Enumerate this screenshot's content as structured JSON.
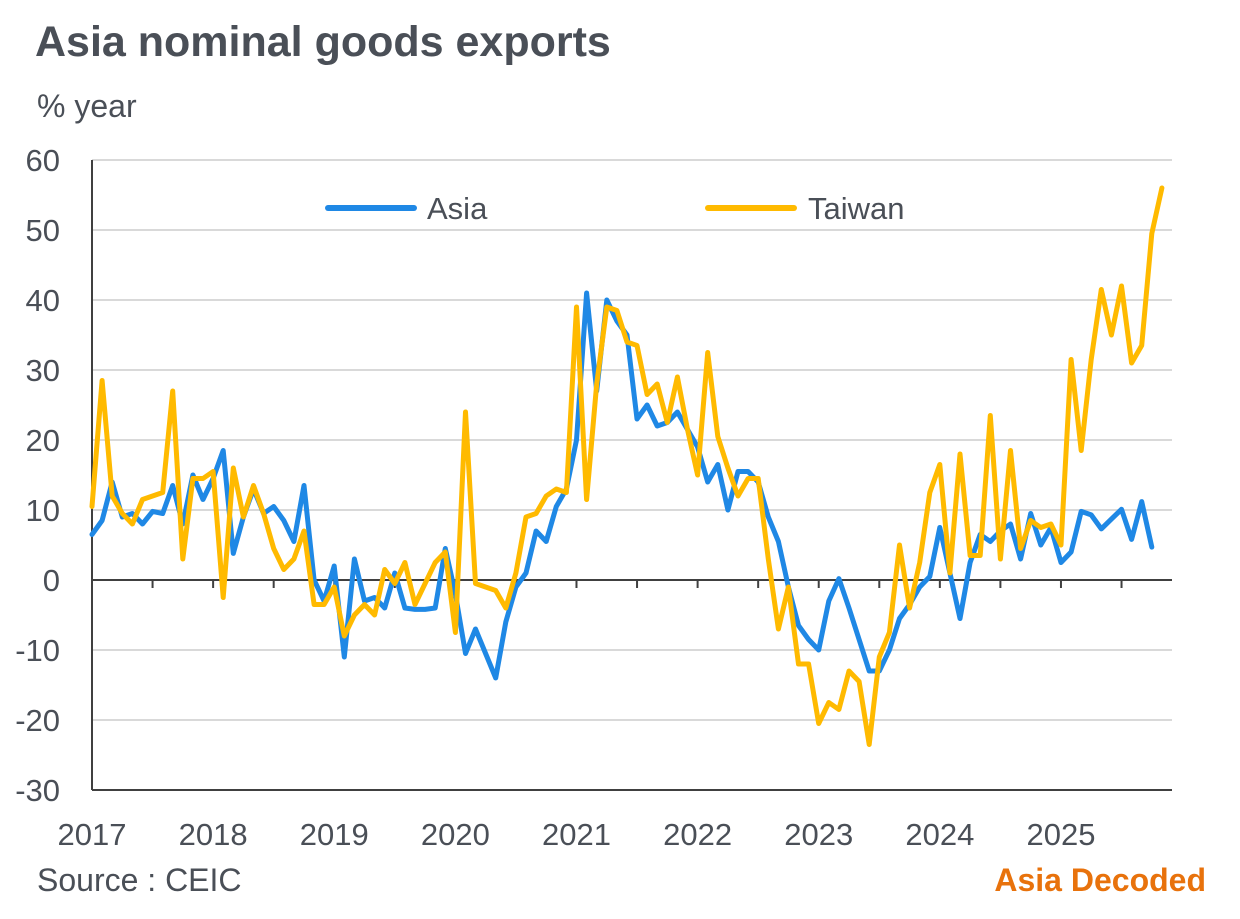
{
  "chart_data": {
    "type": "line",
    "title": "Asia nominal goods exports",
    "ylabel": "% year",
    "xlabel": "",
    "ylim": [
      -30,
      60
    ],
    "yticks": [
      -30,
      -20,
      -10,
      0,
      10,
      20,
      30,
      40,
      50,
      60
    ],
    "x_start": 2017.0,
    "x_step": 0.0833333,
    "xticks": [
      2017,
      2018,
      2019,
      2020,
      2021,
      2022,
      2023,
      2024,
      2025
    ],
    "legend_position": "top-center",
    "source": "Source : CEIC",
    "brand": "Asia Decoded",
    "series": [
      {
        "name": "Asia",
        "color": "#1f88e5",
        "values": [
          6.5,
          8.5,
          14,
          9,
          9.5,
          8,
          9.8,
          9.5,
          13.5,
          8,
          15,
          11.5,
          14.5,
          18.5,
          3.8,
          9,
          13,
          9.5,
          10.5,
          8.5,
          5.5,
          13.5,
          0,
          -3,
          2,
          -11,
          3,
          -3,
          -2.5,
          -4,
          1,
          -4,
          -4.2,
          -4.2,
          -4,
          4.5,
          -2,
          -10.5,
          -7,
          -10.5,
          -14,
          -6,
          -1,
          1,
          7,
          5.5,
          10.5,
          13,
          20,
          41,
          27,
          40,
          37,
          35,
          23,
          25,
          22,
          22.5,
          24,
          21.5,
          19,
          14,
          16.5,
          10,
          15.5,
          15.5,
          14,
          9,
          5.5,
          -1,
          -6.5,
          -8.5,
          -10,
          -3,
          0.2,
          -4,
          -8.5,
          -13,
          -13,
          -10,
          -5.5,
          -3.5,
          -1,
          0.5,
          7.5,
          1,
          -5.5,
          2.5,
          6.5,
          5.5,
          7,
          8,
          3,
          9.5,
          5,
          7.5,
          2.5,
          4,
          9.8,
          9.3,
          7.3,
          8.7,
          10.1,
          5.8,
          11.2,
          4.7
        ]
      },
      {
        "name": "Taiwan",
        "color": "#ffba00",
        "values": [
          10.5,
          28.5,
          12,
          9.5,
          8,
          11.5,
          12,
          12.5,
          27,
          3,
          14.5,
          14.5,
          15.5,
          -2.5,
          16,
          9,
          13.5,
          9.5,
          4.5,
          1.5,
          3,
          7,
          -3.5,
          -3.5,
          -1,
          -8,
          -5,
          -3.5,
          -5,
          1.5,
          -0.5,
          2.5,
          -3.5,
          -0.5,
          2.5,
          4,
          -7.5,
          24,
          -0.5,
          -1,
          -1.5,
          -4,
          1,
          9,
          9.5,
          12,
          13,
          12.5,
          39,
          11.5,
          28,
          39,
          38.5,
          34,
          33.5,
          26.5,
          28,
          22.5,
          29,
          21.5,
          15,
          32.5,
          20.5,
          16,
          12,
          14.5,
          14.5,
          3,
          -7,
          -1,
          -12,
          -12,
          -20.5,
          -17.5,
          -18.5,
          -13,
          -14.5,
          -23.5,
          -11,
          -7.5,
          5,
          -4,
          2.5,
          12.5,
          16.5,
          1,
          18,
          3.5,
          3.5,
          23.5,
          3,
          18.5,
          4.5,
          8.5,
          7.5,
          8,
          5,
          31.5,
          18.5,
          31.5,
          41.5,
          35,
          42,
          31,
          33.5,
          49.5,
          56
        ]
      }
    ]
  }
}
